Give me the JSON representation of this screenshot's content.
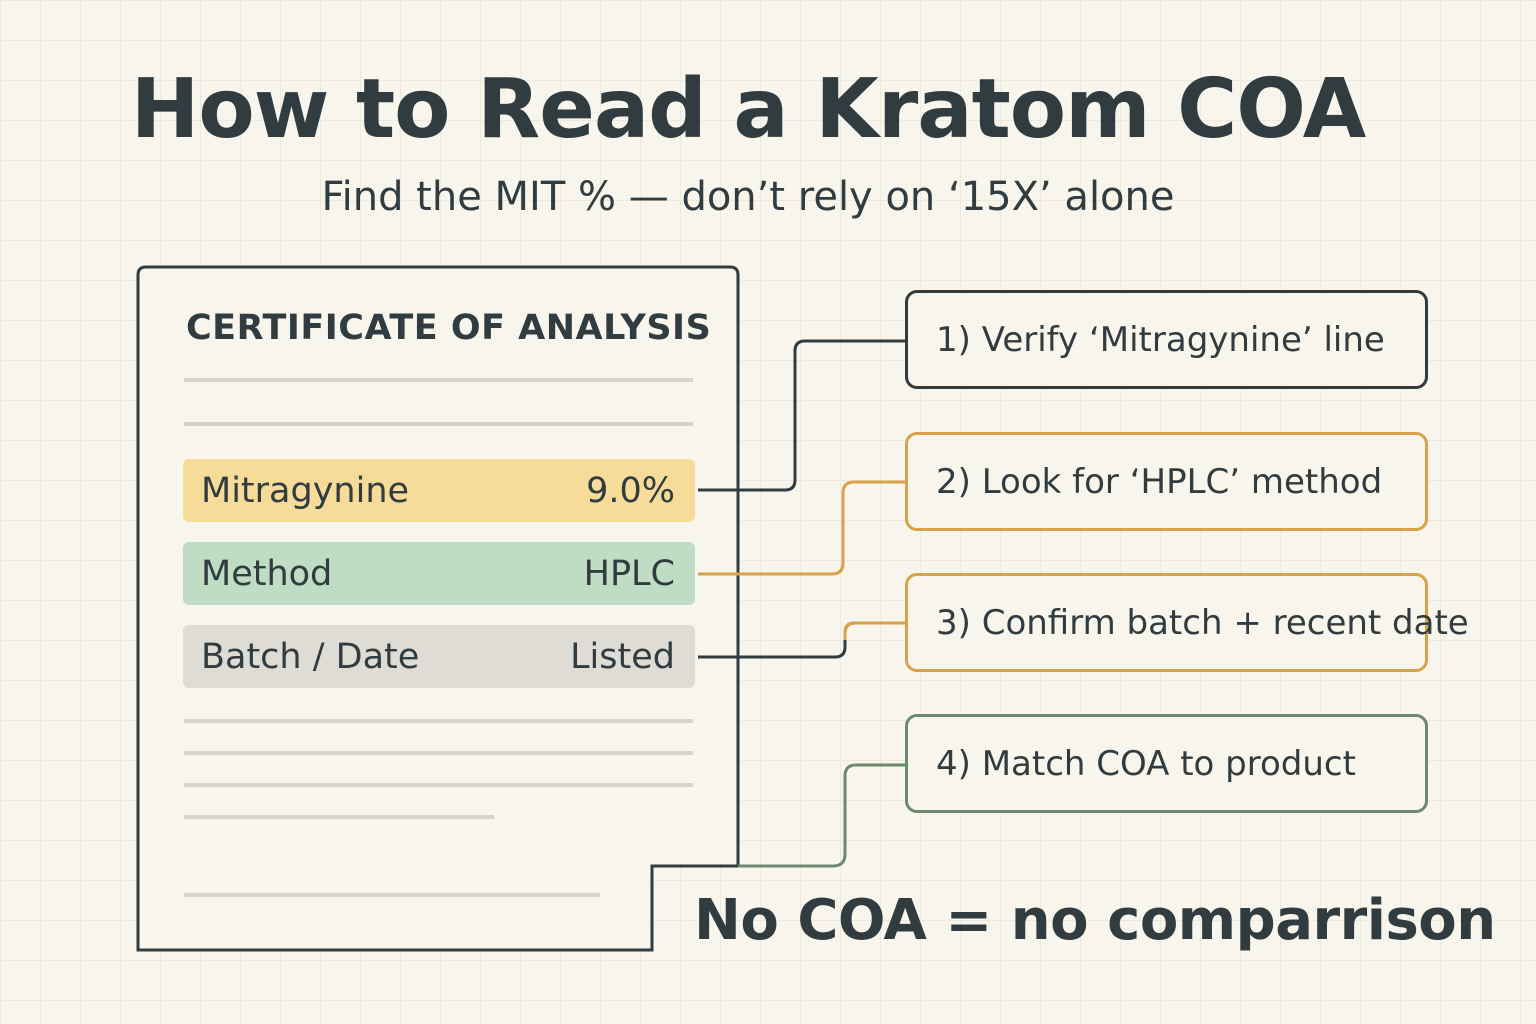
{
  "title": "How to Read a Kratom COA",
  "subtitle": "Find the MIT % — don’t rely on ‘15X’ alone",
  "document": {
    "heading": "CERTIFICATE OF ANALYSIS",
    "rows": [
      {
        "label": "Mitragynine",
        "value": "9.0%",
        "color": "#f6dc98"
      },
      {
        "label": "Method",
        "value": "HPLC",
        "color": "#bfdcc4"
      },
      {
        "label": "Batch / Date",
        "value": "Listed",
        "color": "#dedcd5"
      }
    ]
  },
  "steps": [
    {
      "label": "1) Verify ‘Mitragynine’ line",
      "color": "#313c40"
    },
    {
      "label": "2) Look for ‘HPLC’ method",
      "color": "#d9a24a"
    },
    {
      "label": "3) Confirm batch + recent date",
      "color": "#d9a24a"
    },
    {
      "label": "4) Match COA to product",
      "color": "#6b8a6e"
    }
  ],
  "footer": "No COA = no comparrison"
}
